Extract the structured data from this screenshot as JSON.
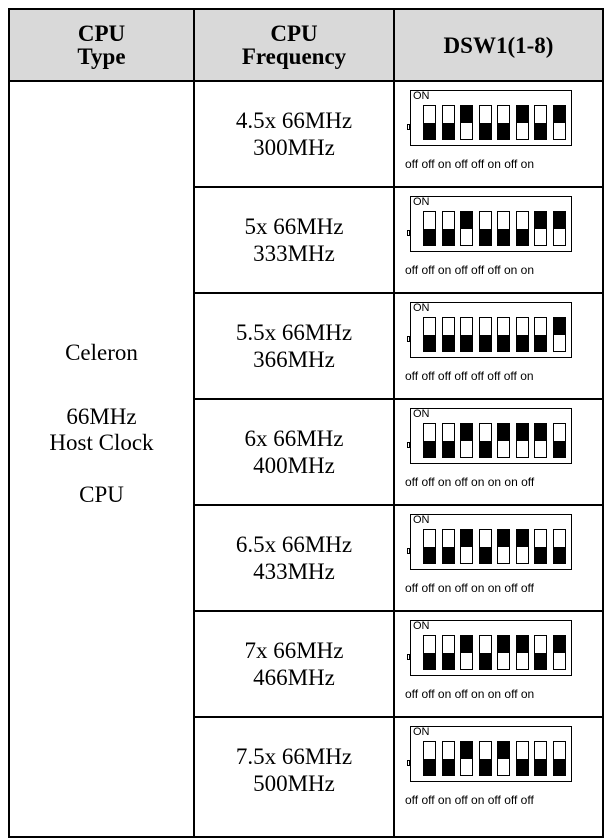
{
  "header": {
    "cpu_type_line1": "CPU",
    "cpu_type_line2": "Type",
    "cpu_freq_line1": "CPU",
    "cpu_freq_line2": "Frequency",
    "dsw": "DSW1(1-8)"
  },
  "cpu_type": {
    "line1": "Celeron",
    "line2": "66MHz",
    "line3": "Host Clock",
    "line4": "CPU"
  },
  "on_label": "ON",
  "rows": [
    {
      "ratio": "4.5x 66MHz",
      "freq": "300MHz",
      "states": [
        "off",
        "off",
        "on",
        "off",
        "off",
        "on",
        "off",
        "on"
      ],
      "caption": "off off on off off on off on"
    },
    {
      "ratio": "5x 66MHz",
      "freq": "333MHz",
      "states": [
        "off",
        "off",
        "on",
        "off",
        "off",
        "off",
        "on",
        "on"
      ],
      "caption": "off off on off off off on on"
    },
    {
      "ratio": "5.5x 66MHz",
      "freq": "366MHz",
      "states": [
        "off",
        "off",
        "off",
        "off",
        "off",
        "off",
        "off",
        "on"
      ],
      "caption": "off off off off off off off on"
    },
    {
      "ratio": "6x 66MHz",
      "freq": "400MHz",
      "states": [
        "off",
        "off",
        "on",
        "off",
        "on",
        "on",
        "on",
        "off"
      ],
      "caption": "off off on off on on on off"
    },
    {
      "ratio": "6.5x 66MHz",
      "freq": "433MHz",
      "states": [
        "off",
        "off",
        "on",
        "off",
        "on",
        "on",
        "off",
        "off"
      ],
      "caption": "off off on off on on off off"
    },
    {
      "ratio": "7x 66MHz",
      "freq": "466MHz",
      "states": [
        "off",
        "off",
        "on",
        "off",
        "on",
        "on",
        "off",
        "on"
      ],
      "caption": "off off on off on on off on"
    },
    {
      "ratio": "7.5x 66MHz",
      "freq": "500MHz",
      "states": [
        "off",
        "off",
        "on",
        "off",
        "on",
        "off",
        "off",
        "off"
      ],
      "caption": "off off on off on off off off"
    }
  ]
}
